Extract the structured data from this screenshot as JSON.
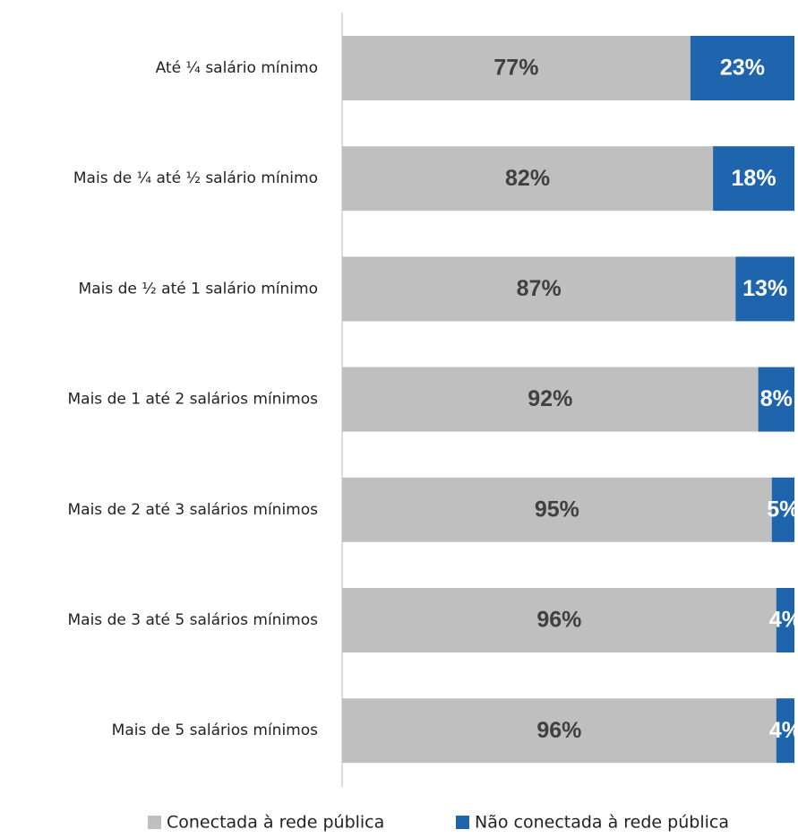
{
  "chart_data": {
    "type": "stacked_barh",
    "categories": [
      "Até ¼ salário mínimo",
      "Mais de ¼ até ½ salário mínimo",
      "Mais de ½ até 1 salário mínimo",
      "Mais de 1 até 2 salários mínimos",
      "Mais de 2 até 3 salários mínimos",
      "Mais de 3 até 5 salários mínimos",
      "Mais de 5 salários mínimos"
    ],
    "series": [
      {
        "name": "Conectada à rede pública",
        "color": "#bfbfbf",
        "label_color": "#404040",
        "values": [
          77,
          82,
          87,
          92,
          95,
          96,
          96
        ],
        "value_labels": [
          "77%",
          "82%",
          "87%",
          "92%",
          "95%",
          "96%",
          "96%"
        ]
      },
      {
        "name": "Não conectada à rede pública",
        "color": "#1f65ad",
        "label_color": "#ffffff",
        "values": [
          23,
          18,
          13,
          8,
          5,
          4,
          4
        ],
        "value_labels": [
          "23%",
          "18%",
          "13%",
          "8%",
          "5%",
          "4%",
          "4%"
        ]
      }
    ],
    "xlim": [
      0,
      100
    ]
  }
}
